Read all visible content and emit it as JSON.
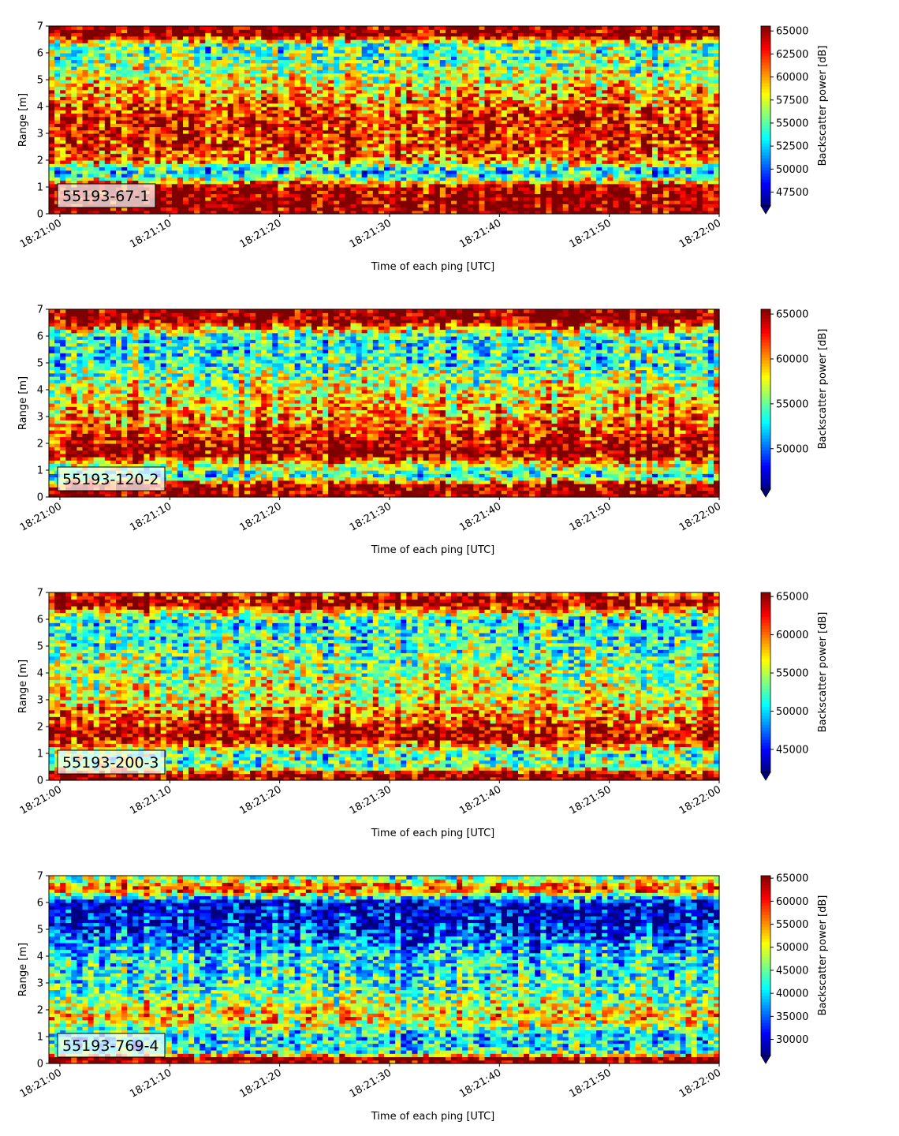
{
  "figure": {
    "xlabel": "Time of each ping [UTC]",
    "ylabel": "Range [m]",
    "colorbar_label": "Backscatter power [dB]"
  },
  "colormap": [
    "#00007f",
    "#0000ff",
    "#007fff",
    "#00ffff",
    "#7fff7f",
    "#ffff00",
    "#ff7f00",
    "#ff0000",
    "#7f0000"
  ],
  "chart_data": [
    {
      "type": "heatmap",
      "tag": "55193-67-1",
      "xlabel": "Time of each ping [UTC]",
      "ylabel": "Range [m]",
      "x_ticks": [
        "18:21:00",
        "18:21:10",
        "18:21:20",
        "18:21:30",
        "18:21:40",
        "18:21:50",
        "18:22:00"
      ],
      "y_ticks": [
        0,
        1,
        2,
        3,
        4,
        5,
        6,
        7
      ],
      "xlim": [
        "18:20:59",
        "18:22:00"
      ],
      "ylim": [
        0,
        7
      ],
      "colorbar": {
        "label": "Backscatter power [dB]",
        "ticks": [
          47500,
          50000,
          52500,
          55000,
          57500,
          60000,
          62500,
          65000
        ],
        "range": [
          46000,
          65535
        ]
      },
      "profile": [
        {
          "range": 0.25,
          "level": 1.0
        },
        {
          "range": 0.6,
          "level": 1.0
        },
        {
          "range": 1.0,
          "level": 0.98
        },
        {
          "range": 1.3,
          "level": 0.55
        },
        {
          "range": 1.6,
          "level": 0.3
        },
        {
          "range": 2.0,
          "level": 0.75
        },
        {
          "range": 2.5,
          "level": 0.85
        },
        {
          "range": 3.5,
          "level": 0.85
        },
        {
          "range": 4.5,
          "level": 0.7
        },
        {
          "range": 5.5,
          "level": 0.5
        },
        {
          "range": 6.3,
          "level": 0.45
        },
        {
          "range": 6.7,
          "level": 1.0
        },
        {
          "range": 7.0,
          "level": 1.0
        }
      ]
    },
    {
      "type": "heatmap",
      "tag": "55193-120-2",
      "xlabel": "Time of each ping [UTC]",
      "ylabel": "Range [m]",
      "x_ticks": [
        "18:21:00",
        "18:21:10",
        "18:21:20",
        "18:21:30",
        "18:21:40",
        "18:21:50",
        "18:22:00"
      ],
      "y_ticks": [
        0,
        1,
        2,
        3,
        4,
        5,
        6,
        7
      ],
      "xlim": [
        "18:20:59",
        "18:22:00"
      ],
      "ylim": [
        0,
        7
      ],
      "colorbar": {
        "label": "Backscatter power [dB]",
        "ticks": [
          50000,
          55000,
          60000,
          65000
        ],
        "range": [
          45500,
          65535
        ]
      },
      "profile": [
        {
          "range": 0.2,
          "level": 1.0
        },
        {
          "range": 0.45,
          "level": 0.95
        },
        {
          "range": 0.8,
          "level": 0.4
        },
        {
          "range": 1.2,
          "level": 0.6
        },
        {
          "range": 1.6,
          "level": 0.98
        },
        {
          "range": 2.2,
          "level": 0.9
        },
        {
          "range": 3.0,
          "level": 0.72
        },
        {
          "range": 4.0,
          "level": 0.62
        },
        {
          "range": 5.0,
          "level": 0.42
        },
        {
          "range": 6.0,
          "level": 0.42
        },
        {
          "range": 6.6,
          "level": 1.0
        },
        {
          "range": 7.0,
          "level": 1.0
        }
      ]
    },
    {
      "type": "heatmap",
      "tag": "55193-200-3",
      "xlabel": "Time of each ping [UTC]",
      "ylabel": "Range [m]",
      "x_ticks": [
        "18:21:00",
        "18:21:10",
        "18:21:20",
        "18:21:30",
        "18:21:40",
        "18:21:50",
        "18:22:00"
      ],
      "y_ticks": [
        0,
        1,
        2,
        3,
        4,
        5,
        6,
        7
      ],
      "xlim": [
        "18:20:59",
        "18:22:00"
      ],
      "ylim": [
        0,
        7
      ],
      "colorbar": {
        "label": "Backscatter power [dB]",
        "ticks": [
          45000,
          50000,
          55000,
          60000,
          65000
        ],
        "range": [
          42000,
          65535
        ]
      },
      "profile": [
        {
          "range": 0.25,
          "level": 1.0
        },
        {
          "range": 0.5,
          "level": 0.5
        },
        {
          "range": 1.0,
          "level": 0.45
        },
        {
          "range": 1.6,
          "level": 0.98
        },
        {
          "range": 2.2,
          "level": 0.82
        },
        {
          "range": 3.0,
          "level": 0.62
        },
        {
          "range": 4.0,
          "level": 0.55
        },
        {
          "range": 5.0,
          "level": 0.45
        },
        {
          "range": 6.0,
          "level": 0.4
        },
        {
          "range": 6.6,
          "level": 1.0
        },
        {
          "range": 7.0,
          "level": 0.85
        }
      ]
    },
    {
      "type": "heatmap",
      "tag": "55193-769-4",
      "xlabel": "Time of each ping [UTC]",
      "ylabel": "Range [m]",
      "x_ticks": [
        "18:21:00",
        "18:21:10",
        "18:21:20",
        "18:21:30",
        "18:21:40",
        "18:21:50",
        "18:22:00"
      ],
      "y_ticks": [
        0,
        1,
        2,
        3,
        4,
        5,
        6,
        7
      ],
      "xlim": [
        "18:20:59",
        "18:22:00"
      ],
      "ylim": [
        0,
        7
      ],
      "colorbar": {
        "label": "Backscatter power [dB]",
        "ticks": [
          30000,
          35000,
          40000,
          45000,
          50000,
          55000,
          60000,
          65000
        ],
        "range": [
          26500,
          65535
        ]
      },
      "profile": [
        {
          "range": 0.2,
          "level": 1.0
        },
        {
          "range": 0.4,
          "level": 0.45
        },
        {
          "range": 1.0,
          "level": 0.35
        },
        {
          "range": 1.7,
          "level": 0.68
        },
        {
          "range": 2.3,
          "level": 0.55
        },
        {
          "range": 3.0,
          "level": 0.42
        },
        {
          "range": 4.0,
          "level": 0.38
        },
        {
          "range": 5.0,
          "level": 0.15
        },
        {
          "range": 6.0,
          "level": 0.08
        },
        {
          "range": 6.5,
          "level": 0.85
        },
        {
          "range": 7.0,
          "level": 0.45
        }
      ]
    }
  ]
}
